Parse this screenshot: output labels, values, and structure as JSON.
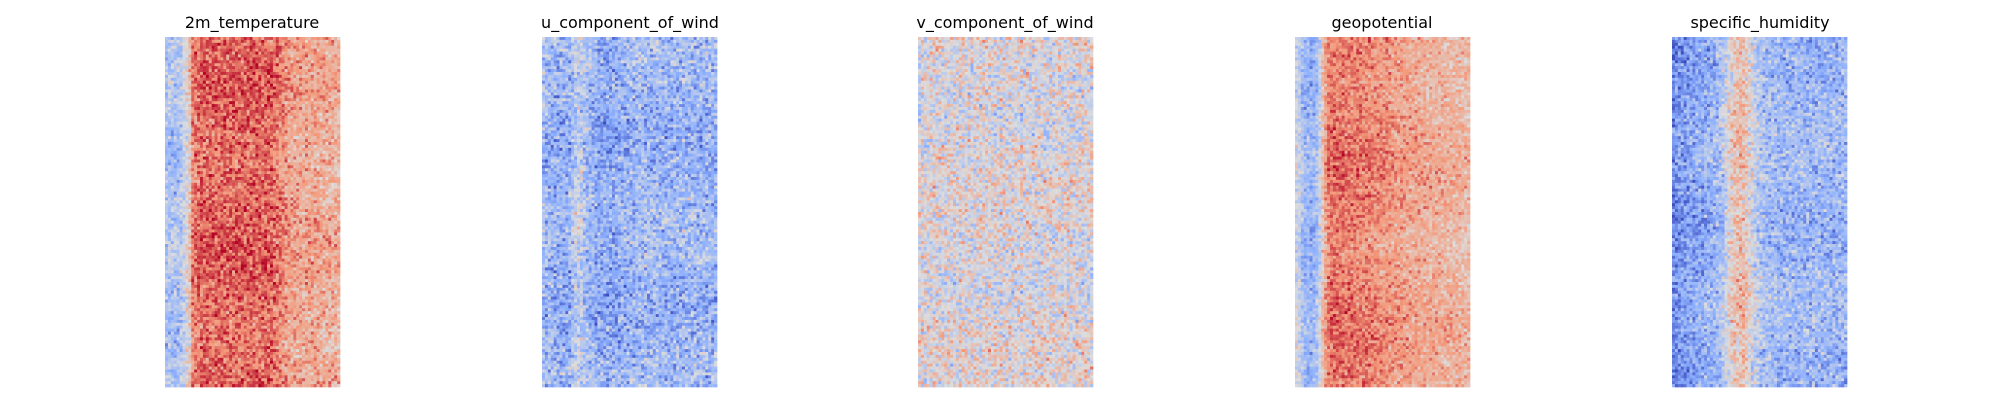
{
  "chart_data": {
    "type": "heatmap",
    "colormap": "coolwarm",
    "colormap_stops": [
      "#3b4cc0",
      "#8db0fe",
      "#dddddd",
      "#f49a7b",
      "#b40426"
    ],
    "grid": false,
    "axes_visible": false,
    "panels": [
      {
        "title": "2m_temperature",
        "column_profile": [
          0.35,
          0.35,
          0.35,
          0.35,
          0.35,
          0.38,
          0.45,
          0.5,
          0.6,
          0.78,
          0.8,
          0.82,
          0.83,
          0.84,
          0.84,
          0.84,
          0.84,
          0.84,
          0.84,
          0.84,
          0.84,
          0.84,
          0.84,
          0.84,
          0.84,
          0.84,
          0.84,
          0.84,
          0.84,
          0.84,
          0.84,
          0.84,
          0.84,
          0.84,
          0.84,
          0.84,
          0.84,
          0.82,
          0.8,
          0.78,
          0.76,
          0.74,
          0.72,
          0.71,
          0.71,
          0.7,
          0.7,
          0.7,
          0.7,
          0.7,
          0.7,
          0.7,
          0.7,
          0.69,
          0.68,
          0.68,
          0.68,
          0.67,
          0.67,
          0.66
        ],
        "noise": 0.08
      },
      {
        "title": "u_component_of_wind",
        "column_profile": [
          0.33,
          0.3,
          0.3,
          0.28,
          0.27,
          0.27,
          0.27,
          0.27,
          0.27,
          0.3,
          0.35,
          0.4,
          0.42,
          0.4,
          0.35,
          0.33,
          0.3,
          0.28,
          0.27,
          0.26,
          0.26,
          0.26,
          0.26,
          0.26,
          0.26,
          0.27,
          0.27,
          0.28,
          0.29,
          0.3,
          0.3,
          0.3,
          0.31,
          0.31,
          0.31,
          0.31,
          0.31,
          0.31,
          0.31,
          0.31,
          0.3,
          0.3,
          0.29,
          0.29,
          0.29,
          0.29,
          0.29,
          0.29,
          0.3,
          0.3,
          0.3,
          0.3,
          0.3,
          0.3,
          0.3,
          0.3,
          0.3,
          0.3,
          0.3,
          0.3
        ],
        "noise": 0.1
      },
      {
        "title": "v_component_of_wind",
        "column_profile": [
          0.5,
          0.5,
          0.5,
          0.5,
          0.5,
          0.5,
          0.5,
          0.5,
          0.5,
          0.5,
          0.5,
          0.5,
          0.5,
          0.5,
          0.5,
          0.5,
          0.5,
          0.5,
          0.5,
          0.5,
          0.5,
          0.5,
          0.5,
          0.5,
          0.5,
          0.5,
          0.5,
          0.5,
          0.5,
          0.5,
          0.5,
          0.5,
          0.5,
          0.5,
          0.5,
          0.5,
          0.5,
          0.5,
          0.5,
          0.5,
          0.5,
          0.5,
          0.5,
          0.5,
          0.5,
          0.5,
          0.5,
          0.5,
          0.5,
          0.5,
          0.5,
          0.5,
          0.5,
          0.5,
          0.5,
          0.5,
          0.5,
          0.5,
          0.5,
          0.5
        ],
        "noise": 0.11
      },
      {
        "title": "geopotential",
        "column_profile": [
          0.45,
          0.42,
          0.35,
          0.3,
          0.3,
          0.28,
          0.3,
          0.35,
          0.45,
          0.6,
          0.72,
          0.8,
          0.82,
          0.82,
          0.82,
          0.82,
          0.82,
          0.8,
          0.8,
          0.8,
          0.8,
          0.79,
          0.79,
          0.78,
          0.78,
          0.77,
          0.77,
          0.76,
          0.76,
          0.75,
          0.75,
          0.74,
          0.74,
          0.73,
          0.73,
          0.72,
          0.72,
          0.71,
          0.71,
          0.7,
          0.7,
          0.7,
          0.69,
          0.69,
          0.69,
          0.68,
          0.68,
          0.68,
          0.67,
          0.67,
          0.67,
          0.66,
          0.66,
          0.66,
          0.65,
          0.65,
          0.65,
          0.64,
          0.64,
          0.64
        ],
        "noise": 0.07
      },
      {
        "title": "specific_humidity",
        "column_profile": [
          0.15,
          0.17,
          0.19,
          0.2,
          0.21,
          0.22,
          0.23,
          0.24,
          0.25,
          0.26,
          0.26,
          0.27,
          0.28,
          0.29,
          0.3,
          0.32,
          0.34,
          0.38,
          0.44,
          0.5,
          0.56,
          0.6,
          0.62,
          0.63,
          0.62,
          0.58,
          0.52,
          0.47,
          0.43,
          0.39,
          0.36,
          0.34,
          0.33,
          0.32,
          0.32,
          0.31,
          0.31,
          0.3,
          0.3,
          0.3,
          0.3,
          0.3,
          0.3,
          0.3,
          0.3,
          0.3,
          0.3,
          0.3,
          0.3,
          0.3,
          0.3,
          0.3,
          0.3,
          0.3,
          0.3,
          0.3,
          0.3,
          0.3,
          0.3,
          0.3
        ],
        "noise": 0.09
      }
    ]
  }
}
